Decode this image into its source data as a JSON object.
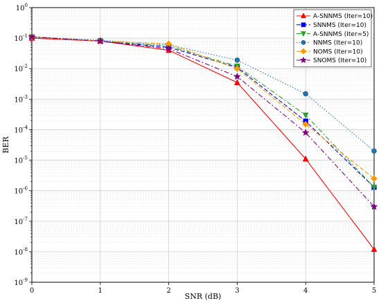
{
  "chart_data": {
    "type": "line",
    "title": "",
    "xlabel": "SNR (dB)",
    "ylabel": "BER",
    "xlim": [
      0,
      5
    ],
    "ylim": [
      1e-09,
      1
    ],
    "yscale": "log",
    "grid": true,
    "legend_position": "top-right",
    "x_ticks": [
      "0",
      "1",
      "2",
      "3",
      "4",
      "5"
    ],
    "y_ticks": [
      {
        "base": "10",
        "exp": "-9"
      },
      {
        "base": "10",
        "exp": "-8"
      },
      {
        "base": "10",
        "exp": "-7"
      },
      {
        "base": "10",
        "exp": "-6"
      },
      {
        "base": "10",
        "exp": "-5"
      },
      {
        "base": "10",
        "exp": "-4"
      },
      {
        "base": "10",
        "exp": "-3"
      },
      {
        "base": "10",
        "exp": "-2"
      },
      {
        "base": "10",
        "exp": "-1"
      },
      {
        "base": "10",
        "exp": "0"
      }
    ],
    "x": [
      0,
      1,
      2,
      3,
      4,
      5
    ],
    "series": [
      {
        "name": "A-SNNMS (Iter=10)",
        "color": "#ff0000",
        "marker": "triangle-up",
        "line_style": "solid",
        "values": [
          0.1,
          0.08,
          0.04,
          0.0035,
          1.1e-05,
          1.2e-08
        ]
      },
      {
        "name": "SNNMS (Iter=10)",
        "color": "#0000ff",
        "marker": "square",
        "line_style": "dashed",
        "values": [
          0.11,
          0.08,
          0.05,
          0.011,
          0.00019,
          1.3e-06
        ]
      },
      {
        "name": "A-SNNMS (Iter=5)",
        "color": "#2ca02c",
        "marker": "triangle-down",
        "line_style": "dashdot",
        "values": [
          0.11,
          0.08,
          0.055,
          0.012,
          0.0003,
          1.3e-06
        ]
      },
      {
        "name": "NNMS (Iter=10)",
        "color": "#1f77b4",
        "marker": "circle",
        "line_style": "dotted",
        "values": [
          0.11,
          0.085,
          0.06,
          0.019,
          0.0015,
          2e-05
        ]
      },
      {
        "name": "NOMS (Iter=10)",
        "color": "#ff9900",
        "marker": "diamond",
        "line_style": "dashed",
        "values": [
          0.11,
          0.08,
          0.065,
          0.01,
          0.00015,
          2.5e-06
        ]
      },
      {
        "name": "SNOMS (Iter=10)",
        "color": "#800080",
        "marker": "star",
        "line_style": "dashdot",
        "values": [
          0.11,
          0.08,
          0.045,
          0.0055,
          8e-05,
          3e-07
        ]
      }
    ]
  }
}
